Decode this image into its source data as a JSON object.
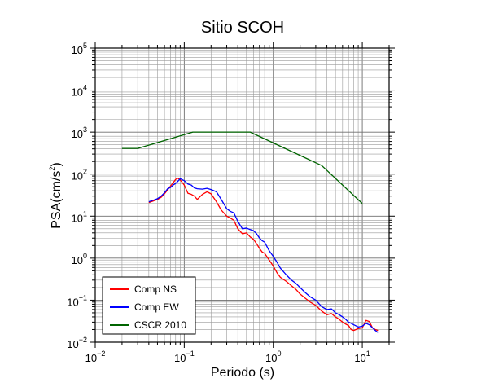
{
  "chart_data": {
    "type": "line",
    "title": "Sitio SCOH",
    "xlabel": "Periodo (s)",
    "ylabel_base": "PSA(cm/s",
    "ylabel_sup": "2",
    "ylabel_end": ")",
    "x_scale": "log",
    "y_scale": "log",
    "xlim": [
      0.01,
      20
    ],
    "ylim": [
      0.01,
      100000
    ],
    "grid": true,
    "legend_position": "bottom-left",
    "x_ticks": [
      {
        "value": 0.01,
        "base": "10",
        "exp": "−2"
      },
      {
        "value": 0.1,
        "base": "10",
        "exp": "−1"
      },
      {
        "value": 1,
        "base": "10",
        "exp": "0"
      },
      {
        "value": 10,
        "base": "10",
        "exp": "1"
      }
    ],
    "y_ticks": [
      {
        "value": 0.01,
        "base": "10",
        "exp": "−2"
      },
      {
        "value": 0.1,
        "base": "10",
        "exp": "−1"
      },
      {
        "value": 1,
        "base": "10",
        "exp": "0"
      },
      {
        "value": 10,
        "base": "10",
        "exp": "1"
      },
      {
        "value": 100,
        "base": "10",
        "exp": "2"
      },
      {
        "value": 1000,
        "base": "10",
        "exp": "3"
      },
      {
        "value": 10000,
        "base": "10",
        "exp": "4"
      },
      {
        "value": 100000,
        "base": "10",
        "exp": "5"
      }
    ],
    "series": [
      {
        "name": "Comp NS",
        "color": "#ff0000",
        "x": [
          0.04,
          0.045,
          0.05,
          0.055,
          0.06,
          0.065,
          0.07,
          0.075,
          0.08,
          0.085,
          0.09,
          0.1,
          0.11,
          0.12,
          0.13,
          0.14,
          0.16,
          0.18,
          0.2,
          0.23,
          0.26,
          0.3,
          0.33,
          0.36,
          0.4,
          0.45,
          0.5,
          0.55,
          0.6,
          0.65,
          0.7,
          0.75,
          0.8,
          0.9,
          1.0,
          1.1,
          1.2,
          1.4,
          1.6,
          1.8,
          2.0,
          2.3,
          2.6,
          3.0,
          3.5,
          4.0,
          4.5,
          5.0,
          5.5,
          6.0,
          6.5,
          7.0,
          7.5,
          8.0,
          9.0,
          10.0,
          11.0,
          12.0,
          13.0,
          14.0,
          15.0
        ],
        "values": [
          21,
          23,
          25,
          28,
          34,
          42,
          52,
          62,
          75,
          80,
          73,
          55,
          35,
          33,
          30,
          25,
          33,
          38,
          34,
          22,
          14,
          10,
          9,
          8,
          5,
          3.8,
          4,
          3.2,
          2.8,
          2.2,
          1.7,
          1.4,
          1.3,
          0.9,
          0.65,
          0.45,
          0.35,
          0.28,
          0.22,
          0.18,
          0.14,
          0.11,
          0.09,
          0.075,
          0.055,
          0.045,
          0.048,
          0.04,
          0.035,
          0.03,
          0.027,
          0.025,
          0.02,
          0.019,
          0.021,
          0.022,
          0.033,
          0.031,
          0.022,
          0.02,
          0.019
        ]
      },
      {
        "name": "Comp EW",
        "color": "#0000ff",
        "x": [
          0.04,
          0.045,
          0.05,
          0.055,
          0.06,
          0.065,
          0.07,
          0.075,
          0.08,
          0.085,
          0.09,
          0.1,
          0.11,
          0.12,
          0.13,
          0.14,
          0.16,
          0.18,
          0.2,
          0.23,
          0.26,
          0.3,
          0.33,
          0.36,
          0.4,
          0.45,
          0.5,
          0.55,
          0.6,
          0.65,
          0.7,
          0.75,
          0.8,
          0.9,
          1.0,
          1.1,
          1.2,
          1.4,
          1.6,
          1.8,
          2.0,
          2.3,
          2.6,
          3.0,
          3.5,
          4.0,
          4.5,
          5.0,
          5.5,
          6.0,
          6.5,
          7.0,
          7.5,
          8.0,
          9.0,
          10.0,
          11.0,
          12.0,
          13.0,
          14.0,
          15.0
        ],
        "values": [
          22,
          24,
          26,
          30,
          36,
          45,
          48,
          55,
          60,
          68,
          78,
          70,
          58,
          55,
          47,
          45,
          44,
          46,
          43,
          38,
          25,
          15,
          13,
          12,
          7.5,
          5,
          5.2,
          4.8,
          4.5,
          3.8,
          3,
          2.6,
          2.4,
          1.5,
          1.1,
          0.8,
          0.58,
          0.4,
          0.3,
          0.25,
          0.2,
          0.15,
          0.12,
          0.1,
          0.07,
          0.06,
          0.062,
          0.05,
          0.045,
          0.04,
          0.035,
          0.03,
          0.028,
          0.026,
          0.023,
          0.024,
          0.028,
          0.026,
          0.022,
          0.019,
          0.017
        ]
      },
      {
        "name": "CSCR 2010",
        "color": "#006400",
        "x": [
          0.02,
          0.03,
          0.125,
          0.55,
          3.5,
          10
        ],
        "values": [
          410,
          410,
          1000,
          1000,
          160,
          20
        ]
      }
    ]
  }
}
